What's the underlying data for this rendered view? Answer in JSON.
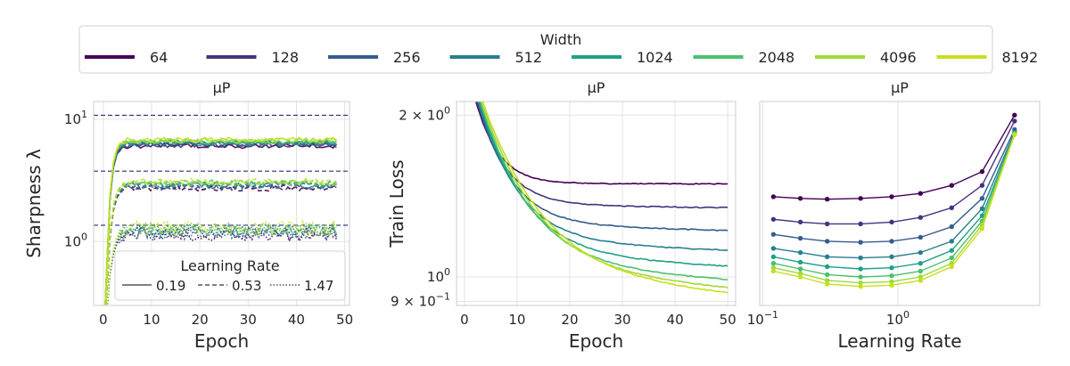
{
  "legend": {
    "title": "Width",
    "items": [
      {
        "label": "64",
        "color": "#440154"
      },
      {
        "label": "128",
        "color": "#46327e"
      },
      {
        "label": "256",
        "color": "#365c8d"
      },
      {
        "label": "512",
        "color": "#277f8e"
      },
      {
        "label": "1024",
        "color": "#1fa187"
      },
      {
        "label": "2048",
        "color": "#4ac16d"
      },
      {
        "label": "4096",
        "color": "#a0da39"
      },
      {
        "label": "8192",
        "color": "#c8e020"
      }
    ]
  },
  "chart_data": [
    {
      "type": "line",
      "title": "μP",
      "xlabel": "Epoch",
      "ylabel": "Sharpness  λ",
      "y_scale": "log",
      "xlim": [
        -2,
        51
      ],
      "ylim": [
        0.3,
        14
      ],
      "x_ticks": [
        "0",
        "10",
        "20",
        "30",
        "40",
        "50"
      ],
      "x_tick_values": [
        0,
        10,
        20,
        30,
        40,
        50
      ],
      "y_ticks": [
        "10⁰",
        "10¹"
      ],
      "y_tick_values": [
        1,
        10
      ],
      "grid": true,
      "reference_lines": [
        {
          "y": 10.8,
          "style": "dashed"
        },
        {
          "y": 3.77,
          "style": "dashed"
        },
        {
          "y": 1.36,
          "style": "dashed"
        }
      ],
      "inner_legend": {
        "title": "Learning Rate",
        "position": "bottom-right",
        "items": [
          {
            "label": "0.19",
            "style": "solid"
          },
          {
            "label": "0.53",
            "style": "dashed"
          },
          {
            "label": "1.47",
            "style": "dotted"
          }
        ]
      },
      "series": [
        {
          "learning_rate": "0.19",
          "style": "solid",
          "plateau": [
            6.1,
            6.2,
            6.3,
            6.4,
            6.5,
            6.6,
            6.7,
            6.8
          ]
        },
        {
          "learning_rate": "0.53",
          "style": "dashed",
          "plateau": [
            2.75,
            2.8,
            2.85,
            2.9,
            2.95,
            3.0,
            3.05,
            3.1
          ]
        },
        {
          "learning_rate": "1.47",
          "style": "dotted",
          "plateau": [
            1.15,
            1.17,
            1.2,
            1.22,
            1.24,
            1.26,
            1.28,
            1.3
          ]
        }
      ]
    },
    {
      "type": "line",
      "title": "μP",
      "xlabel": "Epoch",
      "ylabel": "Train Loss",
      "y_scale": "log",
      "xlim": [
        -1.5,
        51.5
      ],
      "ylim": [
        0.885,
        2.12
      ],
      "x_ticks": [
        "0",
        "10",
        "20",
        "30",
        "40",
        "50"
      ],
      "x_tick_values": [
        0,
        10,
        20,
        30,
        40,
        50
      ],
      "y_ticks": [
        "2 × 10⁰",
        "10⁰",
        "9 × 10⁻¹"
      ],
      "y_tick_values": [
        2.0,
        1.0,
        0.9
      ],
      "grid": true,
      "series": [
        {
          "name": "64",
          "final": 1.49
        },
        {
          "name": "128",
          "final": 1.345
        },
        {
          "name": "256",
          "final": 1.22
        },
        {
          "name": "512",
          "final": 1.12
        },
        {
          "name": "1024",
          "final": 1.045
        },
        {
          "name": "2048",
          "final": 0.985
        },
        {
          "name": "4096",
          "final": 0.95
        },
        {
          "name": "8192",
          "final": 0.925
        }
      ]
    },
    {
      "type": "line",
      "title": "μP",
      "xlabel": "Learning Rate",
      "ylabel": "",
      "x_scale": "log",
      "y_scale": "log",
      "xlim": [
        0.095,
        11.2
      ],
      "ylim": [
        0.885,
        2.12
      ],
      "x_ticks": [
        "10⁻¹",
        "10⁰"
      ],
      "x_tick_values": [
        0.1,
        1.0
      ],
      "grid": true,
      "x": [
        0.12,
        0.19,
        0.3,
        0.53,
        0.9,
        1.47,
        2.5,
        4.2,
        7.3
      ],
      "series": [
        {
          "name": "64",
          "values": [
            1.41,
            1.4,
            1.395,
            1.4,
            1.41,
            1.43,
            1.48,
            1.57,
            2.0
          ]
        },
        {
          "name": "128",
          "values": [
            1.28,
            1.265,
            1.255,
            1.255,
            1.265,
            1.29,
            1.345,
            1.48,
            1.95
          ]
        },
        {
          "name": "256",
          "values": [
            1.2,
            1.18,
            1.165,
            1.16,
            1.165,
            1.185,
            1.24,
            1.4,
            1.88
          ]
        },
        {
          "name": "512",
          "values": [
            1.13,
            1.11,
            1.09,
            1.085,
            1.09,
            1.11,
            1.165,
            1.34,
            1.86
          ]
        },
        {
          "name": "1024",
          "values": [
            1.09,
            1.065,
            1.045,
            1.035,
            1.04,
            1.06,
            1.12,
            1.3,
            1.85
          ]
        },
        {
          "name": "2048",
          "values": [
            1.06,
            1.035,
            1.01,
            1.0,
            1.005,
            1.025,
            1.085,
            1.27,
            1.85
          ]
        },
        {
          "name": "4096",
          "values": [
            1.04,
            1.015,
            0.985,
            0.975,
            0.98,
            1.0,
            1.06,
            1.25,
            1.84
          ]
        },
        {
          "name": "8192",
          "values": [
            1.025,
            1.0,
            0.97,
            0.96,
            0.965,
            0.985,
            1.045,
            1.23,
            1.84
          ]
        }
      ]
    }
  ]
}
